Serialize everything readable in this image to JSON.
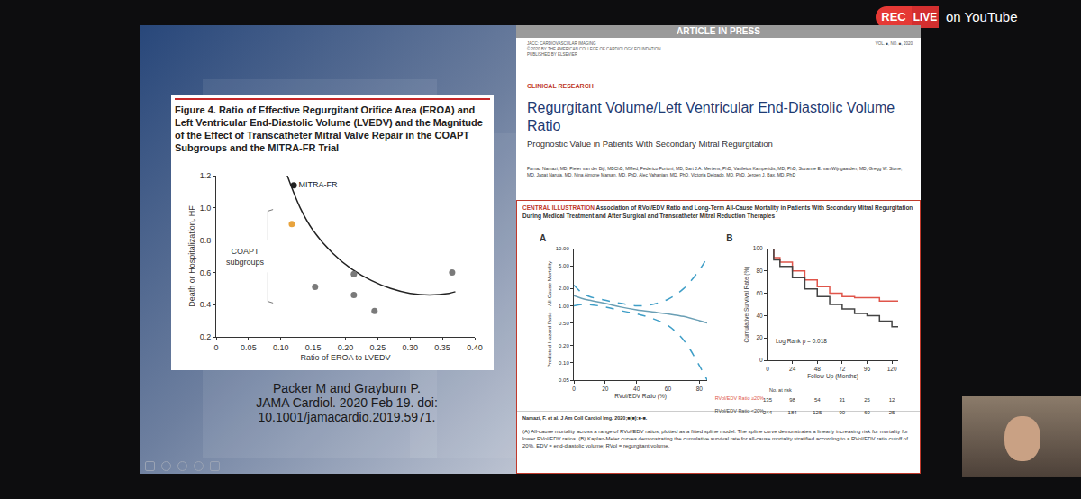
{
  "page": {
    "live_badge": [
      "REC",
      "LIVE",
      "on YouTube"
    ],
    "figure": {
      "title": "Figure 4. Ratio of Effective Regurgitant Orifice Area (EROA) and Left Ventricular End-Diastolic Volume (LVEDV) and the Magnitude of the Effect of Transcatheter Mitral Valve Repair in the COAPT Subgroups and the MITRA-FR Trial",
      "citation": [
        "Packer M and Grayburn P.",
        "JAMA Cardiol. 2020 Feb 19. doi:",
        "10.1001/jamacardio.2019.5971."
      ]
    },
    "article": {
      "banner": "ARTICLE IN PRESS",
      "journal": [
        "JACC: CARDIOVASCULAR IMAGING",
        "© 2020 BY THE AMERICAN COLLEGE OF CARDIOLOGY FOUNDATION",
        "PUBLISHED BY ELSEVIER"
      ],
      "volume": "VOL. ■, NO. ■, 2020",
      "section": "CLINICAL RESEARCH",
      "title": "Regurgitant Volume/Left Ventricular End-Diastolic Volume Ratio",
      "subtitle": "Prognostic Value in Patients With Secondary Mitral Regurgitation",
      "authors": "Farnaz Namazi, MD, Pieter van der Bijl, MBChB, MMed, Federico Fortuni, MD, Bart J.A. Mertens, PhD, Vasileios Kamperidis, MD, PhD, Suzanne E. van Wijngaarden, MD, Gregg W. Stone, MD, Jagat Narula, MD, Nina Ajmone Marsan, MD, PhD, Alec Vahanian, MD, PhD, Victoria Delgado, MD, PhD, Jeroen J. Bax, MD, PhD"
    },
    "illustration": {
      "label": "CENTRAL ILLUSTRATION",
      "title": "Association of RVol/EDV Ratio and Long-Term All-Cause Mortality in Patients With Secondary Mitral Regurgitation During Medical Treatment and After Surgical and Transcatheter Mitral Reduction Therapies",
      "source": "Namazi, F. et al. J Am Coll Cardiol Img. 2020;■(■):■-■.",
      "caption": "(A) All-cause mortality across a range of RVol/EDV ratios, plotted as a fitted spline model. The spline curve demonstrates a linearly increasing risk for mortality for lower RVol/EDV ratios. (B) Kaplan-Meier curves demonstrating the cumulative survival rate for all-cause mortality stratified according to a RVol/EDV ratio cutoff of 20%. EDV = end-diastolic volume; RVol = regurgitant volume."
    }
  },
  "chart_data": [
    {
      "type": "scatter",
      "xlabel": "Ratio of EROA to LVEDV",
      "ylabel": "Death or Hospitalization, HF",
      "xlim": [
        0,
        0.4
      ],
      "xticks": [
        0,
        0.05,
        {
          "value": 0.1,
          "label": "0.10"
        },
        0.15,
        {
          "value": 0.2,
          "label": "0.20"
        },
        0.25,
        {
          "value": 0.3,
          "label": "0.30"
        },
        0.35,
        {
          "value": 0.4,
          "label": "0.40"
        }
      ],
      "ylim": [
        0.2,
        1.2
      ],
      "yticks": [
        0.2,
        0.4,
        0.6,
        0.8,
        {
          "value": 1,
          "label": "1.0"
        },
        1.2
      ],
      "grid": false,
      "annotations": [
        "COAPT subgroups"
      ],
      "series": [
        {
          "type": "line",
          "line_style": "solid",
          "color": "#222222",
          "x": [
            0.11,
            0.13,
            0.15,
            0.18,
            0.21,
            0.24,
            0.27,
            0.3,
            0.33,
            0.36,
            0.37
          ],
          "values": [
            1.2,
            1.0,
            0.86,
            0.72,
            0.62,
            0.55,
            0.5,
            0.47,
            0.46,
            0.47,
            0.48
          ]
        },
        {
          "type": "scatter",
          "name": "MITRA-FR",
          "color": "#222222",
          "x": [
            0.12
          ],
          "values": [
            1.14
          ]
        },
        {
          "type": "scatter",
          "color": "#e8a33d",
          "x": [
            0.117
          ],
          "values": [
            0.9
          ]
        },
        {
          "type": "scatter",
          "color": "#7a7a7a",
          "x": [
            0.153,
            0.213,
            0.213,
            0.245,
            0.365
          ],
          "values": [
            0.51,
            0.59,
            0.46,
            0.36,
            0.6
          ]
        }
      ]
    },
    {
      "type": "line",
      "title": "A",
      "xlabel": "RVol/EDV Ratio (%)",
      "ylabel": "Predicted Hazard Ratio – All-Cause Mortality",
      "log": "y",
      "xlim": [
        0,
        85
      ],
      "xticks": [
        0,
        20,
        40,
        60,
        80
      ],
      "ylim": [
        0.05,
        10
      ],
      "yticks": [
        {
          "value": 10,
          "label": "10.00"
        },
        {
          "value": 5,
          "label": "5.00"
        },
        {
          "value": 2,
          "label": "2.00"
        },
        {
          "value": 1,
          "label": "1.00"
        },
        {
          "value": 0.5,
          "label": "0.50"
        },
        {
          "value": 0.2,
          "label": "0.20"
        },
        {
          "value": 0.1,
          "label": "0.10"
        },
        {
          "value": 0.05,
          "label": "0.05"
        }
      ],
      "grid": false,
      "series": [
        {
          "line_style": "solid",
          "color": "#6a9fb5",
          "x": [
            0,
            5,
            10,
            20,
            30,
            40,
            50,
            60,
            70,
            80,
            85
          ],
          "values": [
            1.5,
            1.35,
            1.25,
            1.1,
            0.95,
            0.85,
            0.78,
            0.72,
            0.65,
            0.55,
            0.5
          ]
        },
        {
          "line_style": "dashed",
          "color": "#3f9ec7",
          "x": [
            0,
            5,
            10,
            20,
            30,
            40,
            50,
            60,
            70,
            80,
            85
          ],
          "values": [
            2.3,
            1.7,
            1.45,
            1.25,
            1.1,
            1.0,
            1.05,
            1.3,
            2.0,
            4.2,
            7.0
          ]
        },
        {
          "line_style": "dashed",
          "color": "#3f9ec7",
          "x": [
            0,
            5,
            10,
            20,
            30,
            40,
            50,
            60,
            70,
            80,
            85
          ],
          "values": [
            1.0,
            1.05,
            1.05,
            0.95,
            0.82,
            0.72,
            0.6,
            0.45,
            0.25,
            0.09,
            0.05
          ]
        }
      ]
    },
    {
      "type": "line",
      "title": "B",
      "xlabel": "Follow-Up (Months)",
      "ylabel": "Cumulative Survival Rate (%)",
      "xlim": [
        0,
        126
      ],
      "xticks": [
        0,
        24,
        48,
        72,
        96,
        120
      ],
      "ylim": [
        0,
        100
      ],
      "yticks": [
        0,
        20,
        40,
        60,
        80,
        100
      ],
      "grid": false,
      "annotations": [
        "Log Rank p = 0.018"
      ],
      "at_risk_title": "No. at risk",
      "series": [
        {
          "name": "RVol/EDV Ratio ≥20%",
          "line_style": "step",
          "color": "#e0554a",
          "x": [
            0,
            6,
            12,
            24,
            36,
            48,
            60,
            72,
            84,
            96,
            108,
            120,
            126
          ],
          "values": [
            100,
            92,
            88,
            80,
            72,
            66,
            60,
            57,
            56,
            56,
            53,
            53,
            53
          ],
          "at_risk": [
            135,
            98,
            54,
            31,
            25,
            12
          ]
        },
        {
          "name": "RVol/EDV Ratio <20%",
          "line_style": "step",
          "color": "#444444",
          "x": [
            0,
            6,
            12,
            24,
            36,
            48,
            60,
            72,
            84,
            96,
            108,
            120,
            126
          ],
          "values": [
            100,
            90,
            84,
            74,
            64,
            57,
            50,
            46,
            42,
            40,
            35,
            30,
            30
          ],
          "at_risk": [
            244,
            184,
            125,
            90,
            60,
            25
          ]
        }
      ]
    }
  ]
}
